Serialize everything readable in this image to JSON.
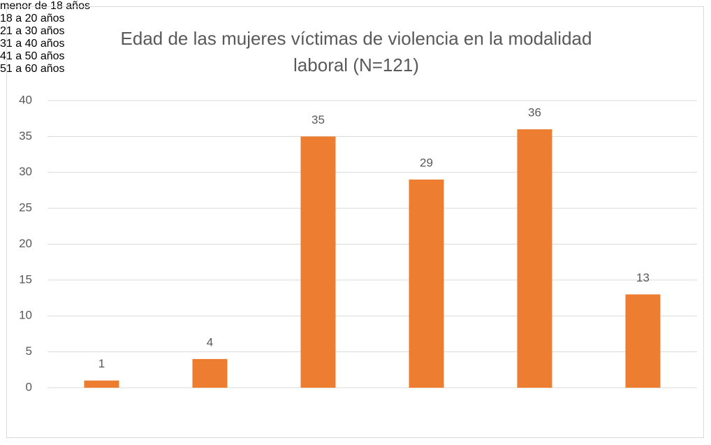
{
  "chart_data": {
    "type": "bar",
    "title": "Edad de las mujeres víctimas de violencia en la modalidad laboral (N=121)",
    "categories": [
      "menor de 18 años",
      "18 a 20 años",
      "21 a 30 años",
      "31 a 40 años",
      "41 a 50 años",
      "51 a 60 años"
    ],
    "values": [
      1,
      4,
      35,
      29,
      36,
      13
    ],
    "color": "#ed7d31",
    "ylim": [
      0,
      40
    ],
    "yticks": [
      0,
      5,
      10,
      15,
      20,
      25,
      30,
      35,
      40
    ],
    "grid": true
  }
}
